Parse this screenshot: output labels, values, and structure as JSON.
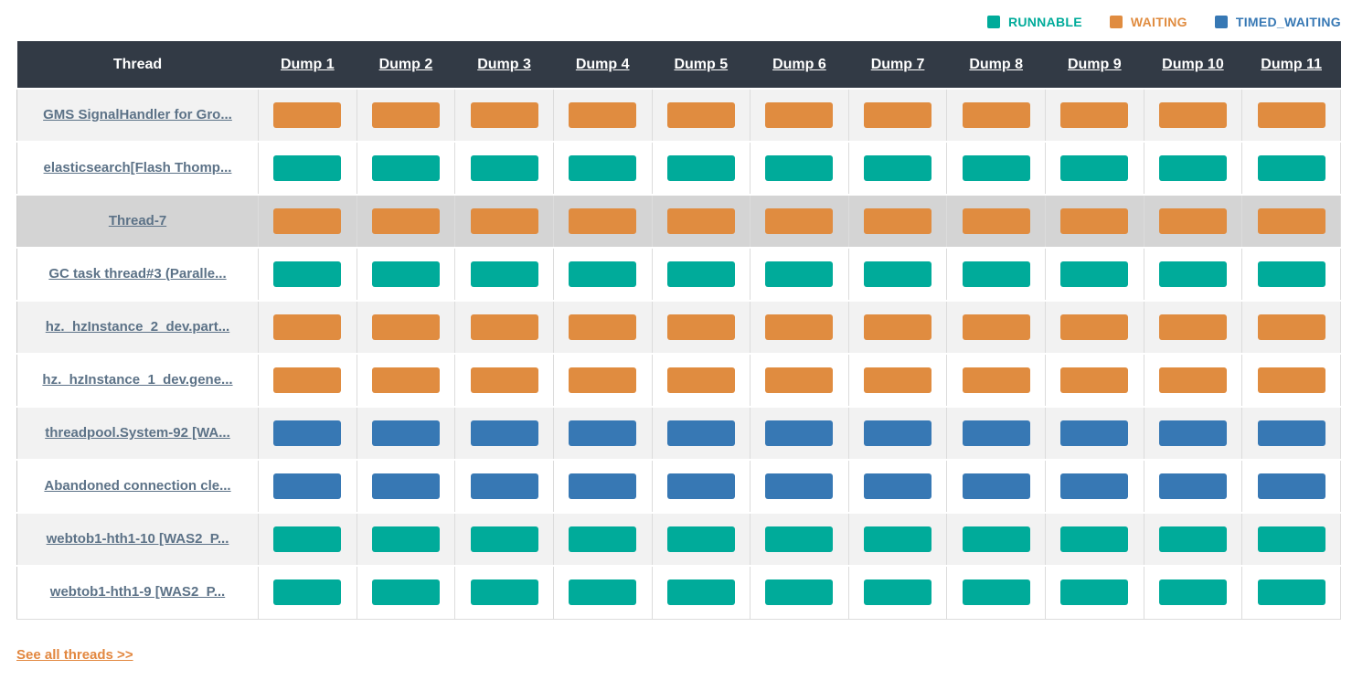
{
  "legend": {
    "items": [
      {
        "label": "RUNNABLE",
        "state": "RUNNABLE",
        "color": "#00ab9a"
      },
      {
        "label": "WAITING",
        "state": "WAITING",
        "color": "#e08c40"
      },
      {
        "label": "TIMED_WAITING",
        "state": "TIMED_WAITING",
        "color": "#3778b4"
      }
    ]
  },
  "table": {
    "thread_header": "Thread",
    "dump_headers": [
      "Dump 1",
      "Dump 2",
      "Dump 3",
      "Dump 4",
      "Dump 5",
      "Dump 6",
      "Dump 7",
      "Dump 8",
      "Dump 9",
      "Dump 10",
      "Dump 11"
    ],
    "rows": [
      {
        "name": "GMS SignalHandler for Gro...",
        "highlighted": false,
        "states": [
          "WAITING",
          "WAITING",
          "WAITING",
          "WAITING",
          "WAITING",
          "WAITING",
          "WAITING",
          "WAITING",
          "WAITING",
          "WAITING",
          "WAITING"
        ]
      },
      {
        "name": "elasticsearch[Flash Thomp...",
        "highlighted": false,
        "states": [
          "RUNNABLE",
          "RUNNABLE",
          "RUNNABLE",
          "RUNNABLE",
          "RUNNABLE",
          "RUNNABLE",
          "RUNNABLE",
          "RUNNABLE",
          "RUNNABLE",
          "RUNNABLE",
          "RUNNABLE"
        ]
      },
      {
        "name": "Thread-7",
        "highlighted": true,
        "states": [
          "WAITING",
          "WAITING",
          "WAITING",
          "WAITING",
          "WAITING",
          "WAITING",
          "WAITING",
          "WAITING",
          "WAITING",
          "WAITING",
          "WAITING"
        ]
      },
      {
        "name": "GC task thread#3 (Paralle...",
        "highlighted": false,
        "states": [
          "RUNNABLE",
          "RUNNABLE",
          "RUNNABLE",
          "RUNNABLE",
          "RUNNABLE",
          "RUNNABLE",
          "RUNNABLE",
          "RUNNABLE",
          "RUNNABLE",
          "RUNNABLE",
          "RUNNABLE"
        ]
      },
      {
        "name": "hz._hzInstance_2_dev.part...",
        "highlighted": false,
        "states": [
          "WAITING",
          "WAITING",
          "WAITING",
          "WAITING",
          "WAITING",
          "WAITING",
          "WAITING",
          "WAITING",
          "WAITING",
          "WAITING",
          "WAITING"
        ]
      },
      {
        "name": "hz._hzInstance_1_dev.gene...",
        "highlighted": false,
        "states": [
          "WAITING",
          "WAITING",
          "WAITING",
          "WAITING",
          "WAITING",
          "WAITING",
          "WAITING",
          "WAITING",
          "WAITING",
          "WAITING",
          "WAITING"
        ]
      },
      {
        "name": "threadpool.System-92 [WA...",
        "highlighted": false,
        "states": [
          "TIMED_WAITING",
          "TIMED_WAITING",
          "TIMED_WAITING",
          "TIMED_WAITING",
          "TIMED_WAITING",
          "TIMED_WAITING",
          "TIMED_WAITING",
          "TIMED_WAITING",
          "TIMED_WAITING",
          "TIMED_WAITING",
          "TIMED_WAITING"
        ]
      },
      {
        "name": "Abandoned connection cle...",
        "highlighted": false,
        "states": [
          "TIMED_WAITING",
          "TIMED_WAITING",
          "TIMED_WAITING",
          "TIMED_WAITING",
          "TIMED_WAITING",
          "TIMED_WAITING",
          "TIMED_WAITING",
          "TIMED_WAITING",
          "TIMED_WAITING",
          "TIMED_WAITING",
          "TIMED_WAITING"
        ]
      },
      {
        "name": "webtob1-hth1-10 [WAS2_P...",
        "highlighted": false,
        "states": [
          "RUNNABLE",
          "RUNNABLE",
          "RUNNABLE",
          "RUNNABLE",
          "RUNNABLE",
          "RUNNABLE",
          "RUNNABLE",
          "RUNNABLE",
          "RUNNABLE",
          "RUNNABLE",
          "RUNNABLE"
        ]
      },
      {
        "name": "webtob1-hth1-9 [WAS2_P...",
        "highlighted": false,
        "states": [
          "RUNNABLE",
          "RUNNABLE",
          "RUNNABLE",
          "RUNNABLE",
          "RUNNABLE",
          "RUNNABLE",
          "RUNNABLE",
          "RUNNABLE",
          "RUNNABLE",
          "RUNNABLE",
          "RUNNABLE"
        ]
      }
    ]
  },
  "footer": {
    "see_all_label": "See all threads >>"
  },
  "colors": {
    "states": {
      "RUNNABLE": "#00ab9a",
      "WAITING": "#e08c40",
      "TIMED_WAITING": "#3778b4"
    },
    "header_bg": "#323a45",
    "row_stripe": "#f2f2f2",
    "row_highlight": "#d4d4d4",
    "thread_link": "#5c7287",
    "see_all_link": "#e2873f"
  }
}
